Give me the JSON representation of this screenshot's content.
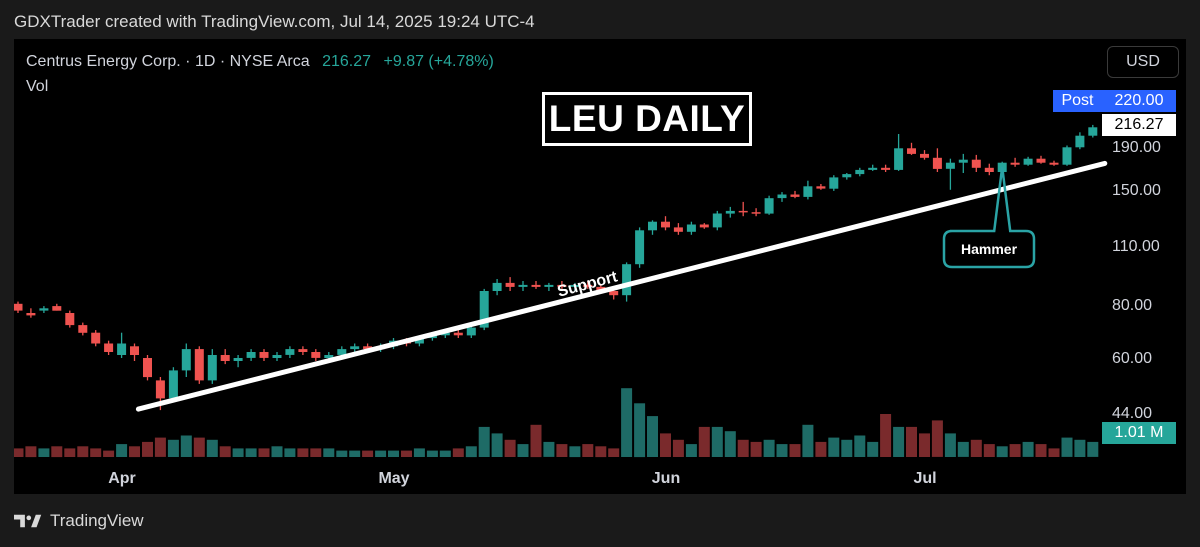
{
  "header": {
    "text": "GDXTrader created with TradingView.com, Jul 14, 2025 19:24 UTC-4"
  },
  "legend": {
    "symbol": "Centrus Energy Corp. · 1D · NYSE Arca",
    "last": "216.27",
    "change": "+9.87 (+4.78%)",
    "vol_label": "Vol"
  },
  "currency": "USD",
  "title_box": "LEU DAILY",
  "post": {
    "label": "Post",
    "price": "220.00"
  },
  "last_price": "216.27",
  "volume_value": "1.01 M",
  "support_label": "Support",
  "hammer_label": "Hammer",
  "footer": {
    "brand": "TradingView"
  },
  "colors": {
    "up": "#26a69a",
    "down": "#ef5350",
    "background": "#000000",
    "post": "#2962ff"
  },
  "chart_data": {
    "type": "candlestick",
    "scale": "log",
    "price_axis": {
      "ticks": [
        "220.00",
        "190.00",
        "150.00",
        "110.00",
        "80.00",
        "60.00",
        "44.00"
      ]
    },
    "time_axis": {
      "ticks": [
        {
          "label": "Apr",
          "index": 8
        },
        {
          "label": "May",
          "index": 29
        },
        {
          "label": "Jun",
          "index": 50
        },
        {
          "label": "Jul",
          "index": 70
        }
      ]
    },
    "candles": [
      [
        80,
        81,
        76,
        77,
        4
      ],
      [
        76,
        78,
        74,
        75,
        5
      ],
      [
        77,
        79,
        76,
        78,
        4
      ],
      [
        79,
        80,
        77,
        77,
        5
      ],
      [
        76,
        77,
        70,
        71,
        4
      ],
      [
        71,
        72,
        67,
        68,
        5
      ],
      [
        68,
        69,
        63,
        64,
        4
      ],
      [
        64,
        65,
        60,
        61,
        3
      ],
      [
        60,
        68,
        59,
        64,
        6
      ],
      [
        63,
        64,
        58,
        60,
        5
      ],
      [
        59,
        60,
        52,
        53,
        7
      ],
      [
        52,
        53,
        44,
        47,
        9
      ],
      [
        47,
        56,
        46,
        55,
        8
      ],
      [
        55,
        64,
        53,
        62,
        10
      ],
      [
        62,
        63,
        51,
        52,
        9
      ],
      [
        52,
        62,
        51,
        60,
        8
      ],
      [
        60,
        62,
        57,
        58,
        5
      ],
      [
        58,
        60,
        56,
        59,
        4
      ],
      [
        59,
        62,
        58,
        61,
        4
      ],
      [
        61,
        62,
        58,
        59,
        4
      ],
      [
        59,
        61,
        58,
        60,
        5
      ],
      [
        60,
        63,
        59,
        62,
        4
      ],
      [
        62,
        63,
        60,
        61,
        4
      ],
      [
        61,
        62,
        58,
        59,
        4
      ],
      [
        59,
        61,
        58,
        60,
        4
      ],
      [
        60,
        63,
        59,
        62,
        3
      ],
      [
        62,
        64,
        61,
        63,
        3
      ],
      [
        63,
        64,
        61,
        62,
        3
      ],
      [
        62,
        64,
        61,
        63,
        3
      ],
      [
        63,
        66,
        62,
        65,
        3
      ],
      [
        65,
        66,
        63,
        64,
        3
      ],
      [
        64,
        67,
        63,
        66,
        4
      ],
      [
        66,
        68,
        65,
        67,
        3
      ],
      [
        67,
        69,
        66,
        68,
        3
      ],
      [
        68,
        70,
        66,
        67,
        4
      ],
      [
        67,
        71,
        66,
        70,
        5
      ],
      [
        70,
        87,
        69,
        86,
        14
      ],
      [
        86,
        92,
        84,
        90,
        11
      ],
      [
        90,
        93,
        86,
        88,
        8
      ],
      [
        88,
        91,
        86,
        89,
        6
      ],
      [
        89,
        91,
        87,
        88,
        15
      ],
      [
        88,
        90,
        86,
        89,
        7
      ],
      [
        89,
        91,
        87,
        88,
        6
      ],
      [
        88,
        90,
        86,
        89,
        5
      ],
      [
        89,
        91,
        87,
        88,
        6
      ],
      [
        88,
        89,
        85,
        86,
        5
      ],
      [
        86,
        87,
        82,
        84,
        4
      ],
      [
        84,
        101,
        81,
        100,
        32
      ],
      [
        100,
        123,
        98,
        121,
        25
      ],
      [
        121,
        128,
        118,
        127,
        19
      ],
      [
        127,
        131,
        121,
        123,
        11
      ],
      [
        123,
        126,
        118,
        120,
        8
      ],
      [
        120,
        127,
        118,
        125,
        6
      ],
      [
        125,
        126,
        122,
        123,
        14
      ],
      [
        123,
        135,
        121,
        133,
        14
      ],
      [
        133,
        138,
        130,
        135,
        12
      ],
      [
        135,
        142,
        131,
        134,
        8
      ],
      [
        134,
        137,
        131,
        133,
        7
      ],
      [
        133,
        147,
        132,
        145,
        8
      ],
      [
        145,
        150,
        142,
        148,
        6
      ],
      [
        148,
        151,
        145,
        146,
        6
      ],
      [
        146,
        160,
        144,
        155,
        15
      ],
      [
        155,
        157,
        152,
        153,
        7
      ],
      [
        153,
        165,
        151,
        163,
        9
      ],
      [
        163,
        167,
        161,
        166,
        8
      ],
      [
        166,
        172,
        164,
        170,
        10
      ],
      [
        170,
        175,
        169,
        172,
        7
      ],
      [
        172,
        175,
        168,
        170,
        20
      ],
      [
        170,
        208,
        169,
        192,
        14
      ],
      [
        192,
        198,
        185,
        186,
        14
      ],
      [
        186,
        190,
        180,
        182,
        11
      ],
      [
        182,
        192,
        168,
        171,
        17
      ],
      [
        171,
        181,
        152,
        177,
        11
      ],
      [
        177,
        186,
        167,
        180,
        7
      ],
      [
        180,
        185,
        168,
        172,
        8
      ],
      [
        172,
        176,
        165,
        168,
        6
      ],
      [
        168,
        178,
        167,
        177,
        5
      ],
      [
        177,
        182,
        173,
        175,
        6
      ],
      [
        175,
        183,
        174,
        181,
        7
      ],
      [
        181,
        184,
        176,
        177,
        6
      ],
      [
        177,
        179,
        174,
        175,
        4
      ],
      [
        175,
        195,
        174,
        193,
        9
      ],
      [
        193,
        210,
        191,
        206,
        8
      ],
      [
        206,
        219,
        204,
        216,
        7
      ]
    ],
    "annotations": [
      {
        "type": "trendline",
        "label": "Support",
        "from": {
          "index": 11,
          "price": 44
        },
        "to": {
          "index": 83,
          "price": 194
        }
      },
      {
        "type": "callout",
        "label": "Hammer",
        "index": 76
      }
    ]
  }
}
